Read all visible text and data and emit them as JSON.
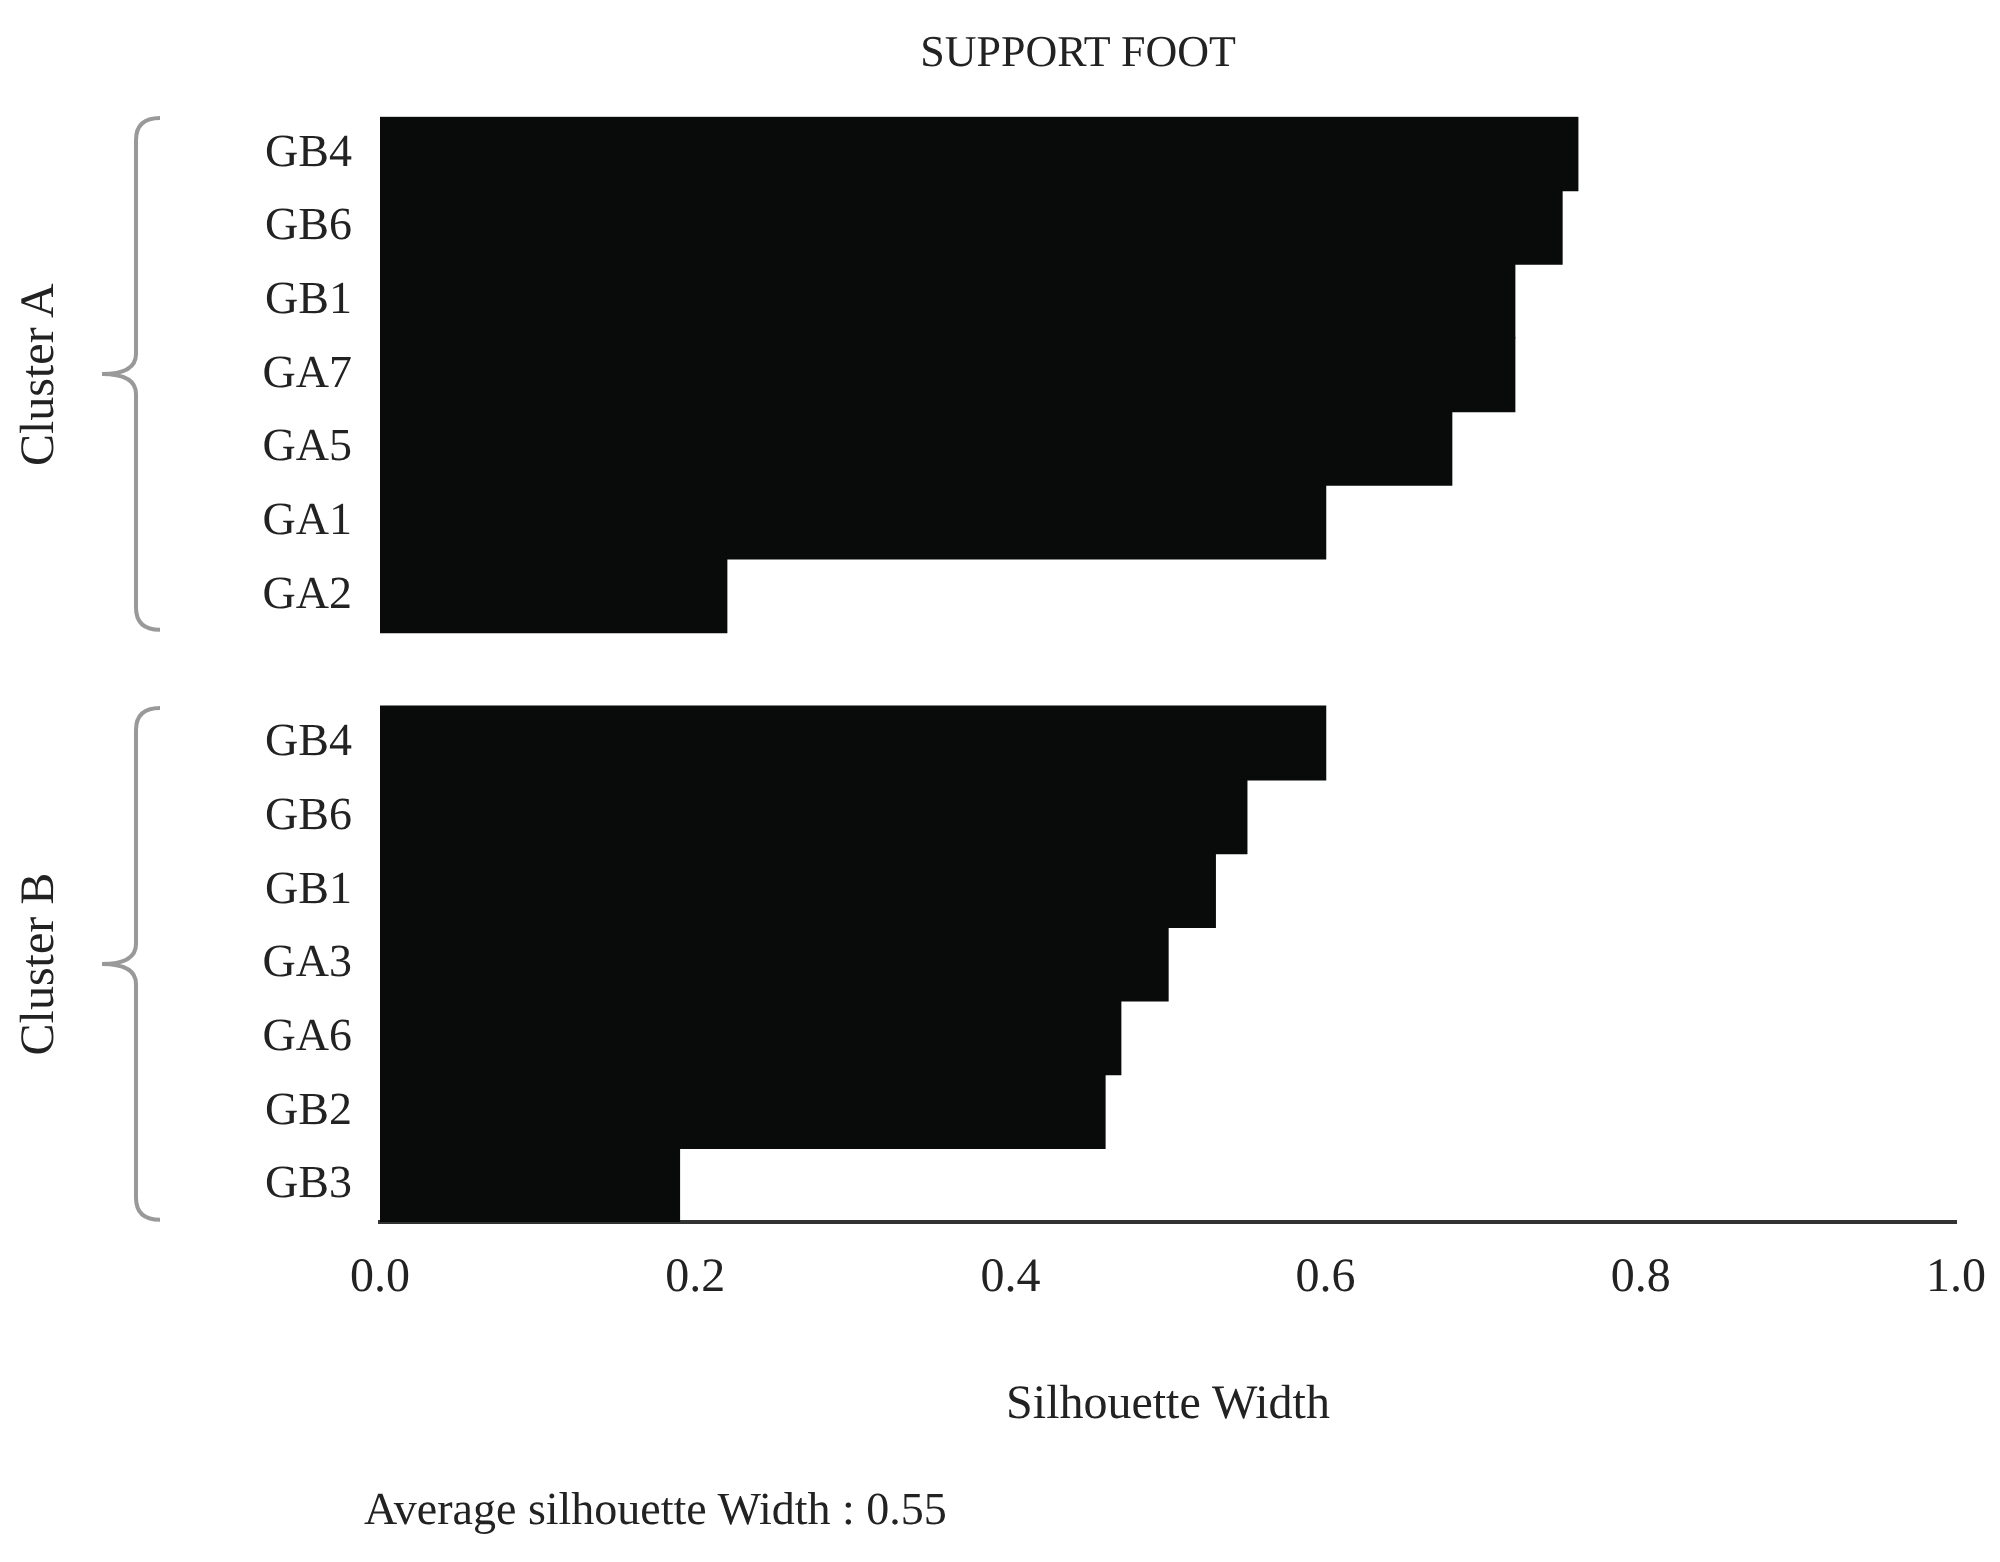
{
  "chart_data": {
    "type": "bar",
    "orientation": "horizontal",
    "title": "SUPPORT FOOT",
    "xlabel": "Silhouette Width",
    "categories": [
      "GB4",
      "GB6",
      "GB1",
      "GA7",
      "GA5",
      "GA1",
      "GA2",
      null,
      "GB4",
      "GB6",
      "GB1",
      "GA3",
      "GA6",
      "GB2",
      "GB3"
    ],
    "values": [
      0.76,
      0.75,
      0.72,
      0.72,
      0.68,
      0.6,
      0.22,
      null,
      0.6,
      0.55,
      0.53,
      0.5,
      0.47,
      0.46,
      0.19
    ],
    "color": "#090b0a",
    "xlim": [
      0,
      1
    ],
    "xticks": [
      {
        "value": 0,
        "label": "0.0"
      },
      {
        "value": 0.2,
        "label": "0.2"
      },
      {
        "value": 0.4,
        "label": "0.4"
      },
      {
        "value": 0.6,
        "label": "0.6"
      },
      {
        "value": 0.8,
        "label": "0.8"
      },
      {
        "value": 1,
        "label": "1.0"
      }
    ],
    "grid": false,
    "legend": false,
    "annotations": [
      "Cluster A",
      "Cluster B",
      "Average silhouette Width : 0.55"
    ]
  }
}
